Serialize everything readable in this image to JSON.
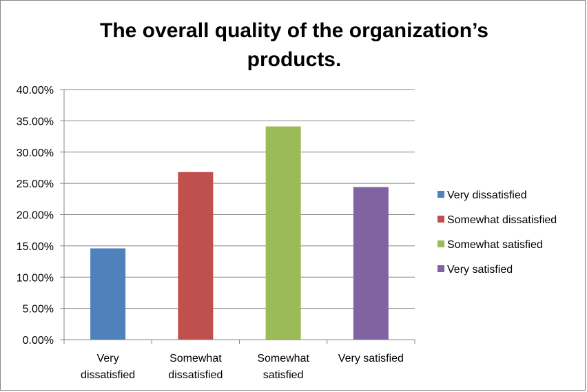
{
  "chart_data": {
    "type": "bar",
    "title_lines": [
      "The overall quality of the organization’s",
      "products."
    ],
    "categories": [
      "Very dissatisfied",
      "Somewhat dissatisfied",
      "Somewhat satisfied",
      "Very satisfied"
    ],
    "category_label_lines": [
      [
        "Very",
        "dissatisfied"
      ],
      [
        "Somewhat",
        "dissatisfied"
      ],
      [
        "Somewhat",
        "satisfied"
      ],
      [
        "Very satisfied"
      ]
    ],
    "values": [
      14.6,
      26.8,
      34.1,
      24.4
    ],
    "colors": [
      "#4F81BD",
      "#C0504D",
      "#9BBB59",
      "#8064A2"
    ],
    "ylim": [
      0,
      40
    ],
    "yticks": [
      0,
      5,
      10,
      15,
      20,
      25,
      30,
      35,
      40
    ],
    "ytick_labels": [
      "0.00%",
      "5.00%",
      "10.00%",
      "15.00%",
      "20.00%",
      "25.00%",
      "30.00%",
      "35.00%",
      "40.00%"
    ],
    "grid": true,
    "legend_position": "right",
    "legend": [
      {
        "label": "Very dissatisfied",
        "color": "#4F81BD"
      },
      {
        "label": "Somewhat dissatisfied",
        "color": "#C0504D"
      },
      {
        "label": "Somewhat satisfied",
        "color": "#9BBB59"
      },
      {
        "label": "Very satisfied",
        "color": "#8064A2"
      }
    ]
  }
}
